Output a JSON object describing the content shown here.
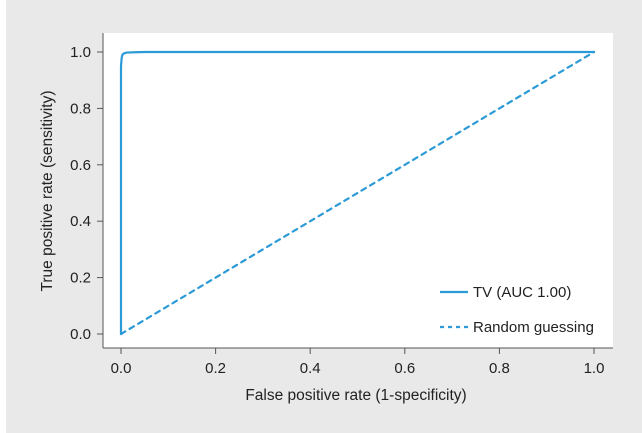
{
  "chart_data": {
    "type": "line",
    "title": "",
    "xlabel": "False positive rate (1-specificity)",
    "ylabel": "True positive rate (sensitivity)",
    "xlim": [
      0,
      1
    ],
    "ylim": [
      0,
      1
    ],
    "x_ticks": [
      "0.0",
      "0.2",
      "0.4",
      "0.6",
      "0.8",
      "1.0"
    ],
    "y_ticks": [
      "0.0",
      "0.2",
      "0.4",
      "0.6",
      "0.8",
      "1.0"
    ],
    "grid": false,
    "legend_position": "bottom-right",
    "series": [
      {
        "name": "TV (AUC 1.00)",
        "style": "solid",
        "color": "#2c9ad6",
        "x": [
          0.0,
          0.0,
          0.0015,
          0.003,
          0.006,
          0.012,
          0.03,
          0.05,
          0.1,
          0.3,
          0.5,
          0.8,
          1.0
        ],
        "y": [
          0.0,
          0.95,
          0.98,
          0.99,
          0.995,
          0.998,
          0.999,
          1.0,
          1.0,
          1.0,
          1.0,
          1.0,
          1.0
        ]
      },
      {
        "name": "Random guessing",
        "style": "dashed",
        "color": "#2c9ad6",
        "x": [
          0.0,
          1.0
        ],
        "y": [
          0.0,
          1.0
        ]
      }
    ]
  },
  "colors": {
    "background_panel": "#e9e9e9",
    "plot_area": "#ffffff",
    "axis": "#555555",
    "line": "#2c9ad6"
  }
}
